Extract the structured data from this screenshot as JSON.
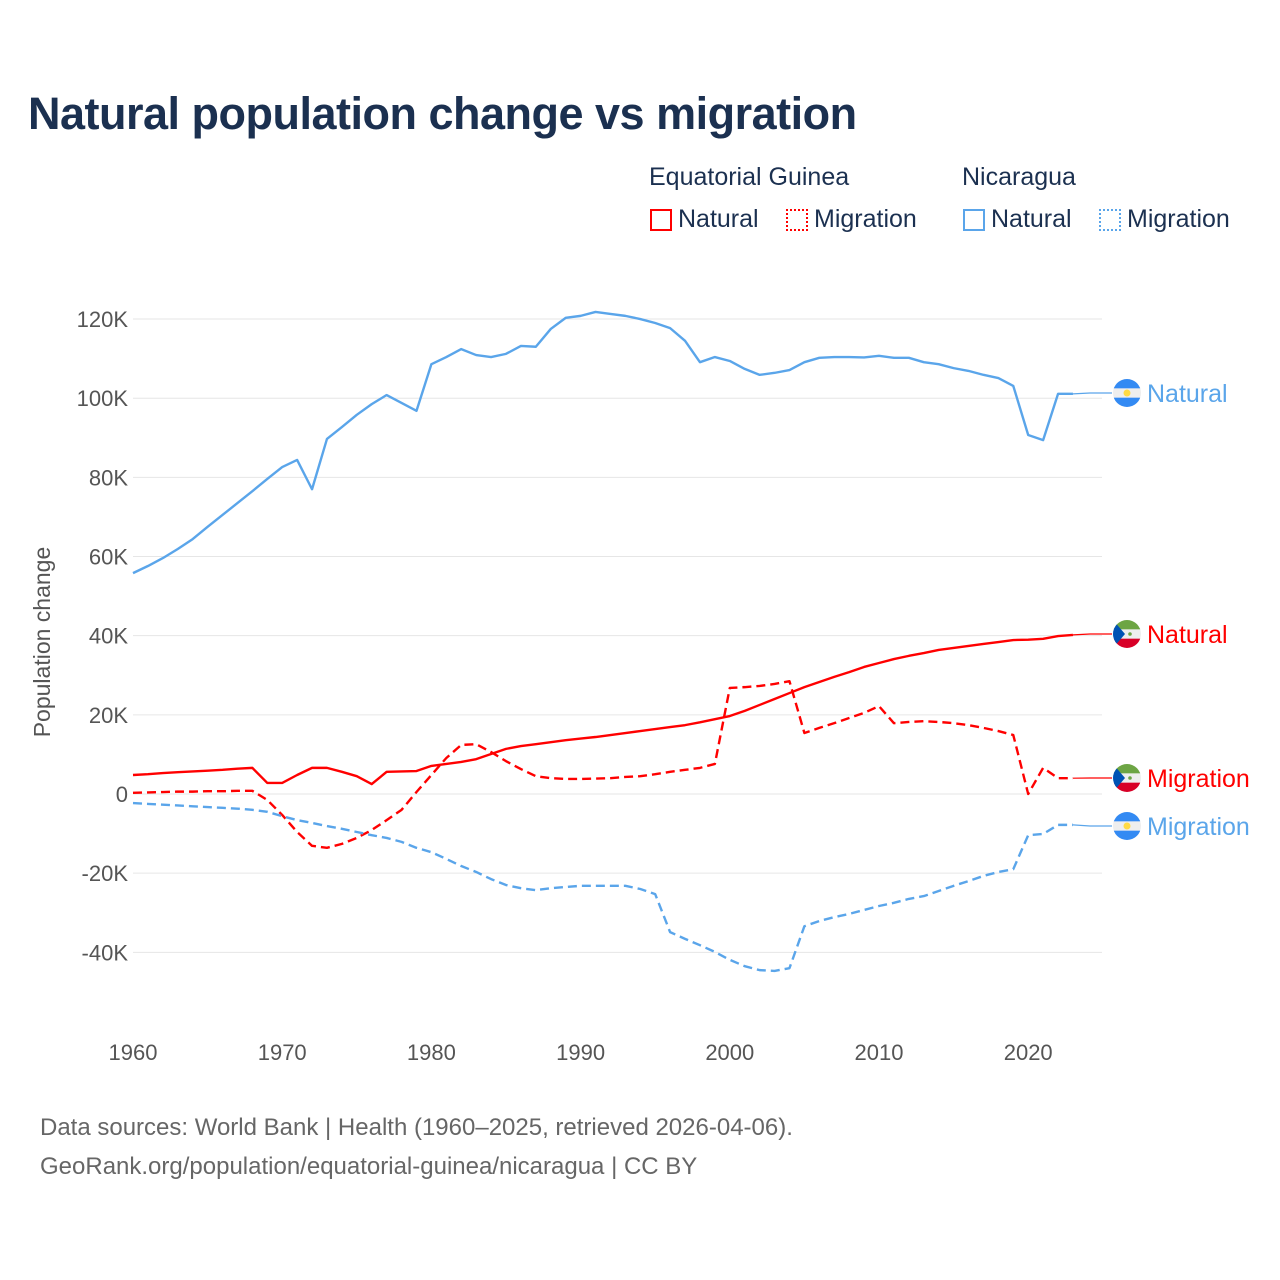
{
  "title": "Natural population change vs migration",
  "legend": {
    "groups": [
      {
        "name": "Equatorial Guinea",
        "color": "#ff0000",
        "items": [
          "Natural",
          "Migration"
        ]
      },
      {
        "name": "Nicaragua",
        "color": "#5aa5ea",
        "items": [
          "Natural",
          "Migration"
        ]
      }
    ]
  },
  "footer": {
    "line1": "Data sources: World Bank | Health (1960–2025, retrieved 2026-04-06).",
    "line2": "GeoRank.org/population/equatorial-guinea/nicaragua | CC BY"
  },
  "chart_data": {
    "type": "line",
    "title": "Natural population change vs migration",
    "ylabel": "Population change",
    "xlabel": "",
    "xlim": [
      1960,
      2025
    ],
    "ylim": [
      -50000,
      125000
    ],
    "x_ticks": [
      1960,
      1970,
      1980,
      1990,
      2000,
      2010,
      2020
    ],
    "y_ticks": [
      {
        "v": -40000,
        "label": "-40K"
      },
      {
        "v": -20000,
        "label": "-20K"
      },
      {
        "v": 0,
        "label": "0"
      },
      {
        "v": 20000,
        "label": "20K"
      },
      {
        "v": 40000,
        "label": "40K"
      },
      {
        "v": 60000,
        "label": "60K"
      },
      {
        "v": 80000,
        "label": "80K"
      },
      {
        "v": 100000,
        "label": "100K"
      },
      {
        "v": 120000,
        "label": "120K"
      }
    ],
    "grid": true,
    "legend_position": "top-right",
    "x_start": 1960,
    "series": [
      {
        "name": "Nicaragua Natural",
        "label": "Natural",
        "country": "Nicaragua",
        "color": "#5aa5ea",
        "dash": false,
        "values": [
          55.8,
          57.6,
          59.6,
          61.9,
          64.4,
          67.5,
          70.5,
          73.5,
          76.5,
          79.6,
          82.6,
          84.4,
          77,
          89.7,
          92.7,
          95.8,
          98.5,
          100.8,
          98.8,
          96.8,
          108.6,
          110.4,
          112.4,
          110.9,
          110.4,
          111.2,
          113.2,
          113,
          117.5,
          120.3,
          120.8,
          121.8,
          121.3,
          120.8,
          120,
          119,
          117.7,
          114.5,
          109.1,
          110.4,
          109.4,
          107.4,
          105.9,
          106.4,
          107.1,
          109.1,
          110.2,
          110.4,
          110.4,
          110.3,
          110.7,
          110.2,
          110.2,
          109.1,
          108.6,
          107.6,
          106.9,
          105.9,
          105.1,
          103.1,
          90.7,
          89.4,
          101.1,
          101.1
        ]
      },
      {
        "name": "Equatorial Guinea Natural",
        "label": "Natural",
        "country": "Equatorial Guinea",
        "color": "#ff0000",
        "dash": false,
        "values": [
          4.8,
          5.0,
          5.3,
          5.5,
          5.7,
          5.9,
          6.1,
          6.4,
          6.6,
          2.8,
          2.8,
          4.8,
          6.6,
          6.6,
          5.6,
          4.5,
          2.5,
          5.6,
          5.7,
          5.8,
          7.1,
          7.6,
          8.1,
          8.8,
          10.1,
          11.4,
          12.1,
          12.6,
          13.1,
          13.6,
          14,
          14.4,
          14.9,
          15.4,
          15.9,
          16.4,
          16.9,
          17.4,
          18.1,
          18.9,
          19.7,
          21,
          22.5,
          24,
          25.5,
          27,
          28.3,
          29.6,
          30.8,
          32.1,
          33.1,
          34.1,
          34.9,
          35.6,
          36.4,
          36.9,
          37.4,
          37.9,
          38.4,
          38.9,
          39,
          39.2,
          39.9,
          40.2
        ]
      },
      {
        "name": "Equatorial Guinea Migration",
        "label": "Migration",
        "country": "Equatorial Guinea",
        "color": "#ff0000",
        "dash": true,
        "values": [
          0.3,
          0.4,
          0.5,
          0.6,
          0.6,
          0.7,
          0.7,
          0.8,
          0.8,
          -1.5,
          -5.3,
          -9.6,
          -13.1,
          -13.6,
          -12.6,
          -11.1,
          -9.1,
          -6.6,
          -4,
          0.5,
          4.8,
          9.1,
          12.4,
          12.6,
          10.6,
          8.3,
          6.3,
          4.5,
          4,
          3.8,
          3.8,
          3.9,
          4,
          4.3,
          4.5,
          5,
          5.6,
          6.1,
          6.6,
          7.6,
          26.8,
          27,
          27.3,
          27.8,
          28.5,
          15.4,
          16.7,
          17.9,
          19.2,
          20.5,
          22.2,
          17.9,
          18.2,
          18.4,
          18.2,
          17.9,
          17.4,
          16.7,
          15.9,
          14.9,
          0,
          6.6,
          4,
          4
        ]
      },
      {
        "name": "Nicaragua Migration",
        "label": "Migration",
        "country": "Nicaragua",
        "color": "#5aa5ea",
        "dash": true,
        "values": [
          -2.3,
          -2.5,
          -2.7,
          -2.9,
          -3.1,
          -3.3,
          -3.5,
          -3.7,
          -4,
          -4.5,
          -5.6,
          -6.6,
          -7.3,
          -8.1,
          -8.8,
          -9.6,
          -10.4,
          -11.1,
          -12.1,
          -13.6,
          -14.7,
          -16.4,
          -18.2,
          -19.7,
          -21.5,
          -23,
          -23.8,
          -24.3,
          -23.8,
          -23.5,
          -23.2,
          -23.2,
          -23.2,
          -23.2,
          -24,
          -25.3,
          -34.9,
          -36.6,
          -38.2,
          -39.9,
          -41.9,
          -43.5,
          -44.5,
          -44.7,
          -44,
          -33.4,
          -32.1,
          -31.1,
          -30.3,
          -29.3,
          -28.3,
          -27.5,
          -26.5,
          -25.8,
          -24.5,
          -23.2,
          -22,
          -20.7,
          -19.7,
          -19,
          -10.4,
          -10.1,
          -7.8,
          -7.8
        ]
      }
    ],
    "value_units": "thousands"
  }
}
